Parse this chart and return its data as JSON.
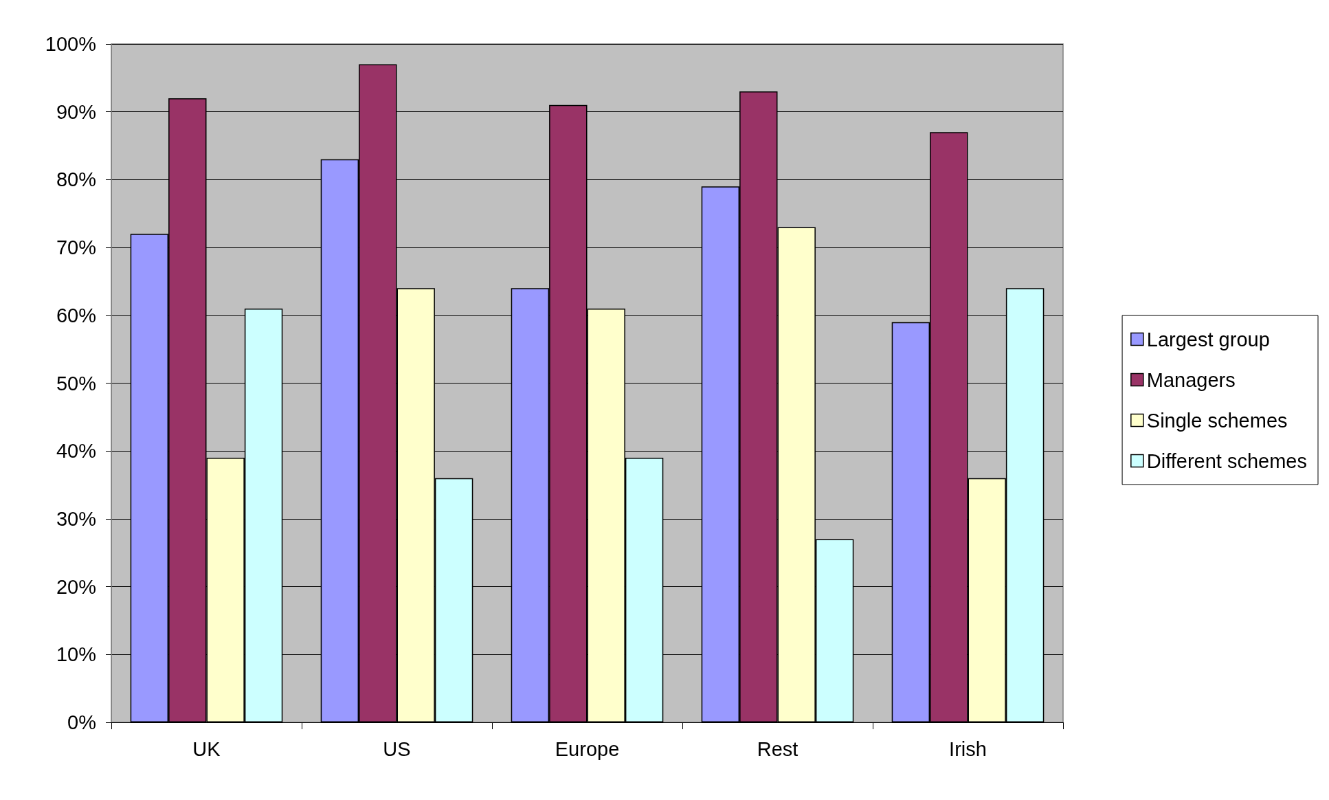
{
  "chart_data": {
    "type": "bar",
    "categories": [
      "UK",
      "US",
      "Europe",
      "Rest",
      "Irish"
    ],
    "series": [
      {
        "name": "Largest group",
        "color": "#9999ff",
        "values": [
          72,
          83,
          64,
          79,
          59
        ]
      },
      {
        "name": "Managers",
        "color": "#993366",
        "values": [
          92,
          97,
          91,
          93,
          87
        ]
      },
      {
        "name": "Single schemes",
        "color": "#ffffcc",
        "values": [
          39,
          64,
          61,
          73,
          36
        ]
      },
      {
        "name": "Different schemes",
        "color": "#ccffff",
        "values": [
          61,
          36,
          39,
          27,
          64
        ]
      }
    ],
    "ylim": [
      0,
      100
    ],
    "yticks": [
      {
        "value": 0,
        "label": "0%"
      },
      {
        "value": 10,
        "label": "10%"
      },
      {
        "value": 20,
        "label": "20%"
      },
      {
        "value": 30,
        "label": "30%"
      },
      {
        "value": 40,
        "label": "40%"
      },
      {
        "value": 50,
        "label": "50%"
      },
      {
        "value": 60,
        "label": "60%"
      },
      {
        "value": 70,
        "label": "70%"
      },
      {
        "value": 80,
        "label": "80%"
      },
      {
        "value": 90,
        "label": "90%"
      },
      {
        "value": 100,
        "label": "100%"
      }
    ],
    "grid": "y",
    "legend": "right"
  }
}
